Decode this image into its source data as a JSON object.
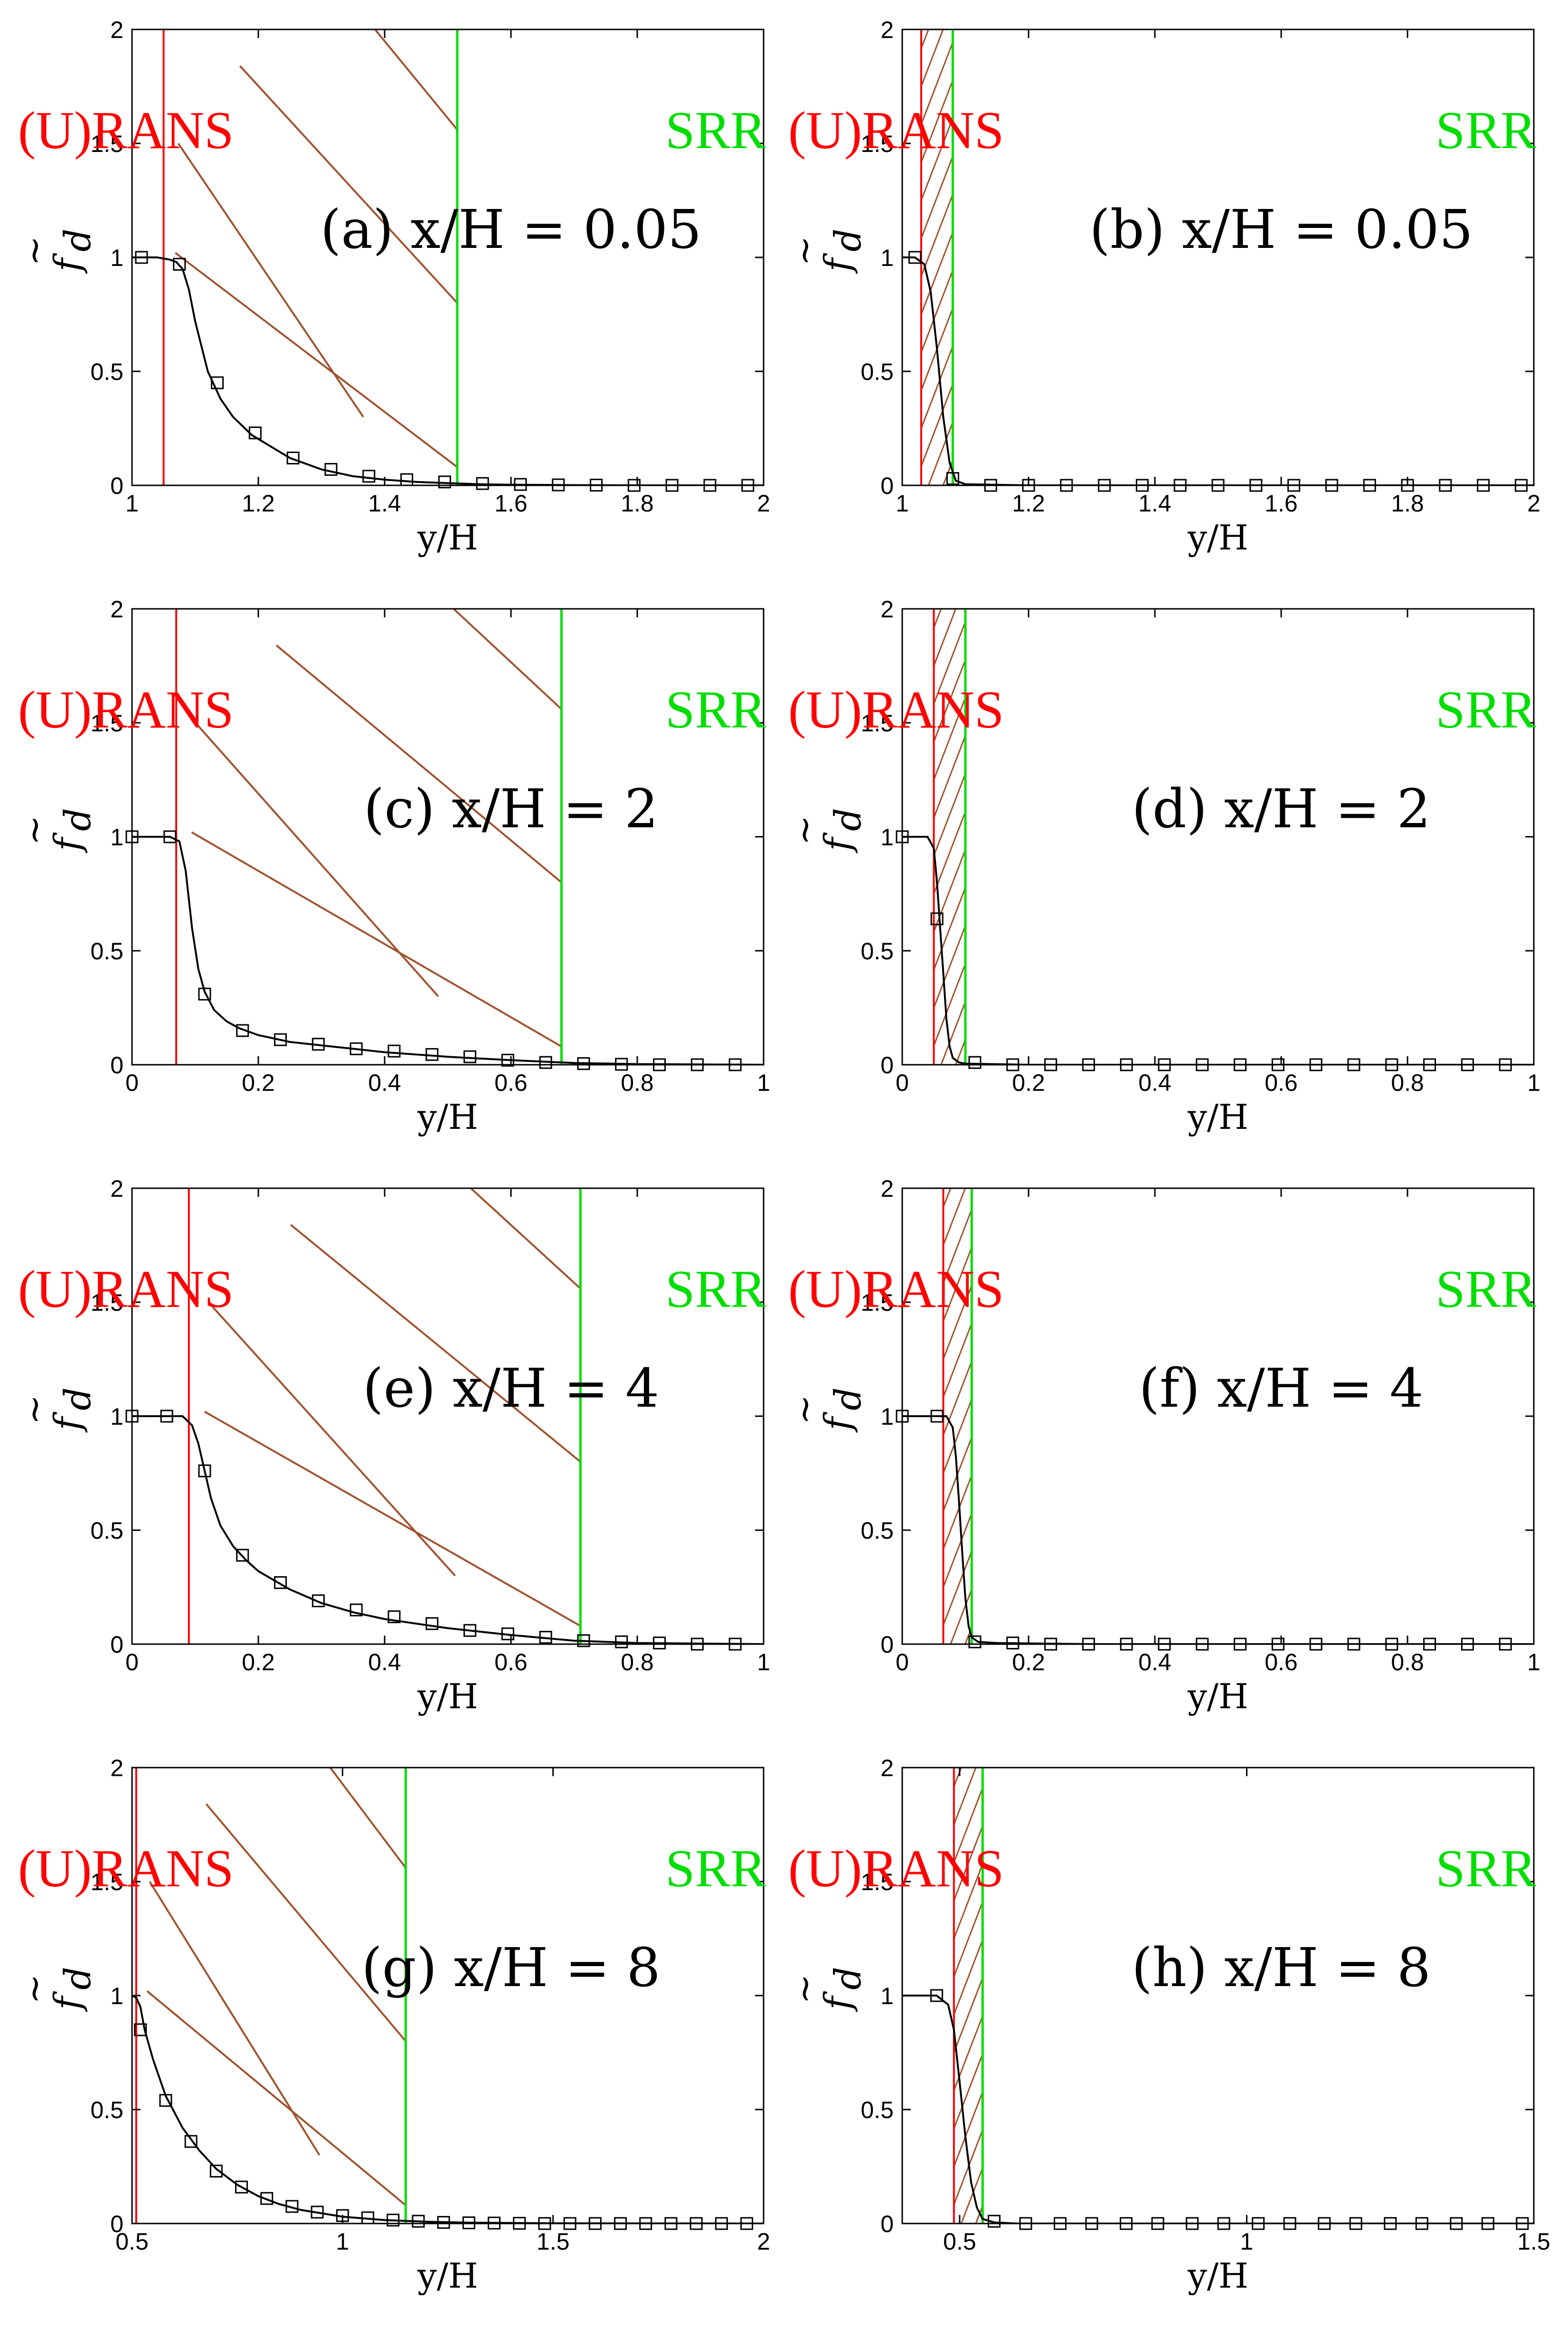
{
  "chart_data": [
    {
      "type": "line",
      "panel_label": "(a) x/H = 0.05",
      "xlabel": "y/H",
      "ylabel": "f_d",
      "ylabel_symbol": "f",
      "ylabel_subscript": "d",
      "ylabel_accent": "~",
      "xlim": [
        1,
        2
      ],
      "ylim": [
        0,
        2
      ],
      "xticks": [
        1,
        1.2,
        1.4,
        1.6,
        1.8,
        2
      ],
      "xtick_labels": [
        "1",
        "1.2",
        "1.4",
        "1.6",
        "1.8",
        "2"
      ],
      "yticks": [
        0,
        0.5,
        1,
        1.5,
        2
      ],
      "ytick_labels": [
        "0",
        "0.5",
        "1",
        "1.5",
        "2"
      ],
      "regions": {
        "urans_label": "(U)RANS",
        "srr_label": "SRR",
        "urans_boundary": 1.05,
        "srr_boundary": 1.515,
        "urans_color": "#ff0000",
        "srr_color": "#00dd00",
        "hatch_color": "#a0522d"
      },
      "series": [
        {
          "x": [
            1.0,
            1.02,
            1.04,
            1.06,
            1.07,
            1.08,
            1.09,
            1.1,
            1.12,
            1.14,
            1.16,
            1.19,
            1.22,
            1.25,
            1.3,
            1.35,
            1.4,
            1.45,
            1.5,
            1.55,
            1.6,
            1.7,
            1.8,
            2.0
          ],
          "y": [
            1.0,
            1.0,
            1.0,
            0.99,
            0.98,
            0.95,
            0.86,
            0.72,
            0.5,
            0.38,
            0.3,
            0.22,
            0.17,
            0.12,
            0.07,
            0.04,
            0.025,
            0.015,
            0.01,
            0.005,
            0.003,
            0.001,
            0.0,
            0.0
          ]
        }
      ],
      "markers": {
        "x": [
          1.015,
          1.075,
          1.135,
          1.195,
          1.255,
          1.315,
          1.375,
          1.435,
          1.495,
          1.555,
          1.615,
          1.675,
          1.735,
          1.795,
          1.855,
          1.915,
          1.975
        ],
        "y": [
          1.0,
          0.97,
          0.45,
          0.23,
          0.12,
          0.07,
          0.04,
          0.025,
          0.015,
          0.008,
          0.004,
          0.002,
          0.001,
          0.0,
          0.0,
          0.0,
          0.0
        ]
      }
    },
    {
      "type": "line",
      "panel_label": "(b) x/H = 0.05",
      "xlabel": "y/H",
      "ylabel": "f_d",
      "ylabel_symbol": "f",
      "ylabel_subscript": "d",
      "ylabel_accent": "~",
      "xlim": [
        1,
        2
      ],
      "ylim": [
        0,
        2
      ],
      "xticks": [
        1,
        1.2,
        1.4,
        1.6,
        1.8,
        2
      ],
      "xtick_labels": [
        "1",
        "1.2",
        "1.4",
        "1.6",
        "1.8",
        "2"
      ],
      "yticks": [
        0,
        0.5,
        1,
        1.5,
        2
      ],
      "ytick_labels": [
        "0",
        "0.5",
        "1",
        "1.5",
        "2"
      ],
      "regions": {
        "urans_label": "(U)RANS",
        "srr_label": "SRR",
        "urans_boundary": 1.03,
        "srr_boundary": 1.08,
        "urans_color": "#ff0000",
        "srr_color": "#00dd00",
        "hatch_color": "#a0522d"
      },
      "series": [
        {
          "x": [
            1.0,
            1.02,
            1.035,
            1.045,
            1.055,
            1.065,
            1.075,
            1.085,
            1.1,
            1.2,
            1.5,
            2.0
          ],
          "y": [
            1.0,
            1.0,
            0.97,
            0.85,
            0.6,
            0.3,
            0.1,
            0.02,
            0.005,
            0.0,
            0.0,
            0.0
          ]
        }
      ],
      "markers": {
        "x": [
          1.02,
          1.08,
          1.14,
          1.2,
          1.26,
          1.32,
          1.38,
          1.44,
          1.5,
          1.56,
          1.62,
          1.68,
          1.74,
          1.8,
          1.86,
          1.92,
          1.98
        ],
        "y": [
          1.0,
          0.03,
          0.0,
          0.0,
          0.0,
          0.0,
          0.0,
          0.0,
          0.0,
          0.0,
          0.0,
          0.0,
          0.0,
          0.0,
          0.0,
          0.0,
          0.0
        ]
      }
    },
    {
      "type": "line",
      "panel_label": "(c) x/H = 2",
      "xlabel": "y/H",
      "ylabel": "f_d",
      "ylabel_symbol": "f",
      "ylabel_subscript": "d",
      "ylabel_accent": "~",
      "xlim": [
        0,
        1
      ],
      "ylim": [
        0,
        2
      ],
      "xticks": [
        0,
        0.2,
        0.4,
        0.6,
        0.8,
        1
      ],
      "xtick_labels": [
        "0",
        "0.2",
        "0.4",
        "0.6",
        "0.8",
        "1"
      ],
      "yticks": [
        0,
        0.5,
        1,
        1.5,
        2
      ],
      "ytick_labels": [
        "0",
        "0.5",
        "1",
        "1.5",
        "2"
      ],
      "regions": {
        "urans_label": "(U)RANS",
        "srr_label": "SRR",
        "urans_boundary": 0.07,
        "srr_boundary": 0.68,
        "urans_color": "#ff0000",
        "srr_color": "#00dd00",
        "hatch_color": "#a0522d"
      },
      "series": [
        {
          "x": [
            0.0,
            0.06,
            0.075,
            0.085,
            0.095,
            0.105,
            0.115,
            0.13,
            0.15,
            0.17,
            0.2,
            0.25,
            0.3,
            0.35,
            0.4,
            0.5,
            0.6,
            0.7,
            0.8,
            1.0
          ],
          "y": [
            1.0,
            1.0,
            0.98,
            0.85,
            0.6,
            0.42,
            0.32,
            0.24,
            0.19,
            0.16,
            0.13,
            0.1,
            0.085,
            0.07,
            0.055,
            0.035,
            0.02,
            0.008,
            0.003,
            0.0
          ]
        }
      ],
      "markers": {
        "x": [
          0.0,
          0.06,
          0.115,
          0.175,
          0.235,
          0.295,
          0.355,
          0.415,
          0.475,
          0.535,
          0.595,
          0.655,
          0.715,
          0.775,
          0.835,
          0.895,
          0.955
        ],
        "y": [
          1.0,
          1.0,
          0.31,
          0.15,
          0.11,
          0.09,
          0.07,
          0.06,
          0.045,
          0.035,
          0.02,
          0.01,
          0.005,
          0.002,
          0.0,
          0.0,
          0.0
        ]
      }
    },
    {
      "type": "line",
      "panel_label": "(d) x/H = 2",
      "xlabel": "y/H",
      "ylabel": "f_d",
      "ylabel_symbol": "f",
      "ylabel_subscript": "d",
      "ylabel_accent": "~",
      "xlim": [
        0,
        1
      ],
      "ylim": [
        0,
        2
      ],
      "xticks": [
        0,
        0.2,
        0.4,
        0.6,
        0.8,
        1
      ],
      "xtick_labels": [
        "0",
        "0.2",
        "0.4",
        "0.6",
        "0.8",
        "1"
      ],
      "yticks": [
        0,
        0.5,
        1,
        1.5,
        2
      ],
      "ytick_labels": [
        "0",
        "0.5",
        "1",
        "1.5",
        "2"
      ],
      "regions": {
        "urans_label": "(U)RANS",
        "srr_label": "SRR",
        "urans_boundary": 0.05,
        "srr_boundary": 0.1,
        "urans_color": "#ff0000",
        "srr_color": "#00dd00",
        "hatch_color": "#a0522d"
      },
      "series": [
        {
          "x": [
            0.0,
            0.04,
            0.05,
            0.055,
            0.06,
            0.065,
            0.07,
            0.075,
            0.08,
            0.09,
            0.1,
            0.2,
            0.5,
            1.0
          ],
          "y": [
            1.0,
            1.0,
            0.95,
            0.8,
            0.6,
            0.4,
            0.2,
            0.08,
            0.03,
            0.01,
            0.005,
            0.0,
            0.0,
            0.0
          ]
        }
      ],
      "markers": {
        "x": [
          0.0,
          0.055,
          0.115,
          0.175,
          0.235,
          0.295,
          0.355,
          0.415,
          0.475,
          0.535,
          0.595,
          0.655,
          0.715,
          0.775,
          0.835,
          0.895,
          0.955
        ],
        "y": [
          1.0,
          0.64,
          0.01,
          0.0,
          0.0,
          0.0,
          0.0,
          0.0,
          0.0,
          0.0,
          0.0,
          0.0,
          0.0,
          0.0,
          0.0,
          0.0,
          0.0
        ]
      }
    },
    {
      "type": "line",
      "panel_label": "(e) x/H = 4",
      "xlabel": "y/H",
      "ylabel": "f_d",
      "ylabel_symbol": "f",
      "ylabel_subscript": "d",
      "ylabel_accent": "~",
      "xlim": [
        0,
        1
      ],
      "ylim": [
        0,
        2
      ],
      "xticks": [
        0,
        0.2,
        0.4,
        0.6,
        0.8,
        1
      ],
      "xtick_labels": [
        "0",
        "0.2",
        "0.4",
        "0.6",
        "0.8",
        "1"
      ],
      "yticks": [
        0,
        0.5,
        1,
        1.5,
        2
      ],
      "ytick_labels": [
        "0",
        "0.5",
        "1",
        "1.5",
        "2"
      ],
      "regions": {
        "urans_label": "(U)RANS",
        "srr_label": "SRR",
        "urans_boundary": 0.09,
        "srr_boundary": 0.71,
        "urans_color": "#ff0000",
        "srr_color": "#00dd00",
        "hatch_color": "#a0522d"
      },
      "series": [
        {
          "x": [
            0.0,
            0.08,
            0.095,
            0.105,
            0.115,
            0.125,
            0.14,
            0.16,
            0.18,
            0.2,
            0.25,
            0.3,
            0.35,
            0.4,
            0.5,
            0.6,
            0.7,
            0.8,
            1.0
          ],
          "y": [
            1.0,
            1.0,
            0.96,
            0.88,
            0.76,
            0.64,
            0.52,
            0.43,
            0.37,
            0.32,
            0.24,
            0.18,
            0.14,
            0.11,
            0.07,
            0.04,
            0.015,
            0.005,
            0.0
          ]
        }
      ],
      "markers": {
        "x": [
          0.0,
          0.055,
          0.115,
          0.175,
          0.235,
          0.295,
          0.355,
          0.415,
          0.475,
          0.535,
          0.595,
          0.655,
          0.715,
          0.775,
          0.835,
          0.895,
          0.955
        ],
        "y": [
          1.0,
          1.0,
          0.76,
          0.39,
          0.27,
          0.19,
          0.15,
          0.12,
          0.09,
          0.06,
          0.045,
          0.03,
          0.015,
          0.01,
          0.005,
          0.0,
          0.0
        ]
      }
    },
    {
      "type": "line",
      "panel_label": "(f) x/H = 4",
      "xlabel": "y/H",
      "ylabel": "f_d",
      "ylabel_symbol": "f",
      "ylabel_subscript": "d",
      "ylabel_accent": "~",
      "xlim": [
        0,
        1
      ],
      "ylim": [
        0,
        2
      ],
      "xticks": [
        0,
        0.2,
        0.4,
        0.6,
        0.8,
        1
      ],
      "xtick_labels": [
        "0",
        "0.2",
        "0.4",
        "0.6",
        "0.8",
        "1"
      ],
      "yticks": [
        0,
        0.5,
        1,
        1.5,
        2
      ],
      "ytick_labels": [
        "0",
        "0.5",
        "1",
        "1.5",
        "2"
      ],
      "regions": {
        "urans_label": "(U)RANS",
        "srr_label": "SRR",
        "urans_boundary": 0.065,
        "srr_boundary": 0.11,
        "urans_color": "#ff0000",
        "srr_color": "#00dd00",
        "hatch_color": "#a0522d"
      },
      "series": [
        {
          "x": [
            0.0,
            0.07,
            0.08,
            0.085,
            0.09,
            0.095,
            0.1,
            0.105,
            0.11,
            0.12,
            0.15,
            0.3,
            0.6,
            1.0
          ],
          "y": [
            1.0,
            1.0,
            0.95,
            0.82,
            0.62,
            0.4,
            0.2,
            0.08,
            0.03,
            0.01,
            0.005,
            0.0,
            0.0,
            0.0
          ]
        }
      ],
      "markers": {
        "x": [
          0.0,
          0.055,
          0.115,
          0.175,
          0.235,
          0.295,
          0.355,
          0.415,
          0.475,
          0.535,
          0.595,
          0.655,
          0.715,
          0.775,
          0.835,
          0.895,
          0.955
        ],
        "y": [
          1.0,
          1.0,
          0.01,
          0.005,
          0.0,
          0.0,
          0.0,
          0.0,
          0.0,
          0.0,
          0.0,
          0.0,
          0.0,
          0.0,
          0.0,
          0.0,
          0.0
        ]
      }
    },
    {
      "type": "line",
      "panel_label": "(g) x/H = 8",
      "xlabel": "y/H",
      "ylabel": "f_d",
      "ylabel_symbol": "f",
      "ylabel_subscript": "d",
      "ylabel_accent": "~",
      "xlim": [
        0.5,
        2
      ],
      "ylim": [
        0,
        2
      ],
      "xticks": [
        0.5,
        1,
        1.5,
        2
      ],
      "xtick_labels": [
        "0.5",
        "1",
        "1.5",
        "2"
      ],
      "yticks": [
        0,
        0.5,
        1,
        1.5,
        2
      ],
      "ytick_labels": [
        "0",
        "0.5",
        "1",
        "1.5",
        "2"
      ],
      "regions": {
        "urans_label": "(U)RANS",
        "srr_label": "SRR",
        "urans_boundary": 0.51,
        "srr_boundary": 1.15,
        "urans_color": "#ff0000",
        "srr_color": "#00dd00",
        "hatch_color": "#a0522d"
      },
      "series": [
        {
          "x": [
            0.5,
            0.51,
            0.52,
            0.53,
            0.55,
            0.58,
            0.62,
            0.66,
            0.7,
            0.75,
            0.8,
            0.85,
            0.9,
            1.0,
            1.1,
            1.2,
            1.3,
            1.5,
            2.0
          ],
          "y": [
            1.0,
            0.99,
            0.95,
            0.85,
            0.72,
            0.56,
            0.42,
            0.32,
            0.24,
            0.17,
            0.12,
            0.085,
            0.06,
            0.03,
            0.015,
            0.008,
            0.004,
            0.001,
            0.0
          ]
        }
      ],
      "markers": {
        "x": [
          0.52,
          0.58,
          0.64,
          0.7,
          0.76,
          0.82,
          0.88,
          0.94,
          1.0,
          1.06,
          1.12,
          1.18,
          1.24,
          1.3,
          1.36,
          1.42,
          1.48,
          1.54,
          1.6,
          1.66,
          1.72,
          1.78,
          1.84,
          1.9,
          1.96
        ],
        "y": [
          0.85,
          0.54,
          0.36,
          0.23,
          0.16,
          0.11,
          0.075,
          0.05,
          0.035,
          0.025,
          0.015,
          0.01,
          0.005,
          0.003,
          0.002,
          0.001,
          0.0,
          0.0,
          0.0,
          0.0,
          0.0,
          0.0,
          0.0,
          0.0,
          0.0
        ]
      }
    },
    {
      "type": "line",
      "panel_label": "(h) x/H = 8",
      "xlabel": "y/H",
      "ylabel": "f_d",
      "ylabel_symbol": "f",
      "ylabel_subscript": "d",
      "ylabel_accent": "~",
      "xlim": [
        0.4,
        1.5
      ],
      "ylim": [
        0,
        2
      ],
      "xticks": [
        0.5,
        1,
        1.5
      ],
      "xtick_labels": [
        "0.5",
        "1",
        "1.5"
      ],
      "yticks": [
        0,
        0.5,
        1,
        1.5,
        2
      ],
      "ytick_labels": [
        "0",
        "0.5",
        "1",
        "1.5",
        "2"
      ],
      "regions": {
        "urans_label": "(U)RANS",
        "srr_label": "SRR",
        "urans_boundary": 0.49,
        "srr_boundary": 0.54,
        "urans_color": "#ff0000",
        "srr_color": "#00dd00",
        "hatch_color": "#a0522d"
      },
      "series": [
        {
          "x": [
            0.4,
            0.46,
            0.48,
            0.49,
            0.5,
            0.51,
            0.52,
            0.53,
            0.54,
            0.56,
            0.6,
            1.0,
            1.5
          ],
          "y": [
            1.0,
            1.0,
            0.96,
            0.85,
            0.62,
            0.38,
            0.18,
            0.07,
            0.02,
            0.005,
            0.0,
            0.0,
            0.0
          ]
        }
      ],
      "markers": {
        "x": [
          0.46,
          0.56,
          0.615,
          0.675,
          0.73,
          0.79,
          0.845,
          0.905,
          0.96,
          1.02,
          1.075,
          1.135,
          1.19,
          1.25,
          1.305,
          1.365,
          1.42,
          1.48
        ],
        "y": [
          1.0,
          0.01,
          0.0,
          0.0,
          0.0,
          0.0,
          0.0,
          0.0,
          0.0,
          0.0,
          0.0,
          0.0,
          0.0,
          0.0,
          0.0,
          0.0,
          0.0,
          0.0
        ]
      }
    }
  ]
}
